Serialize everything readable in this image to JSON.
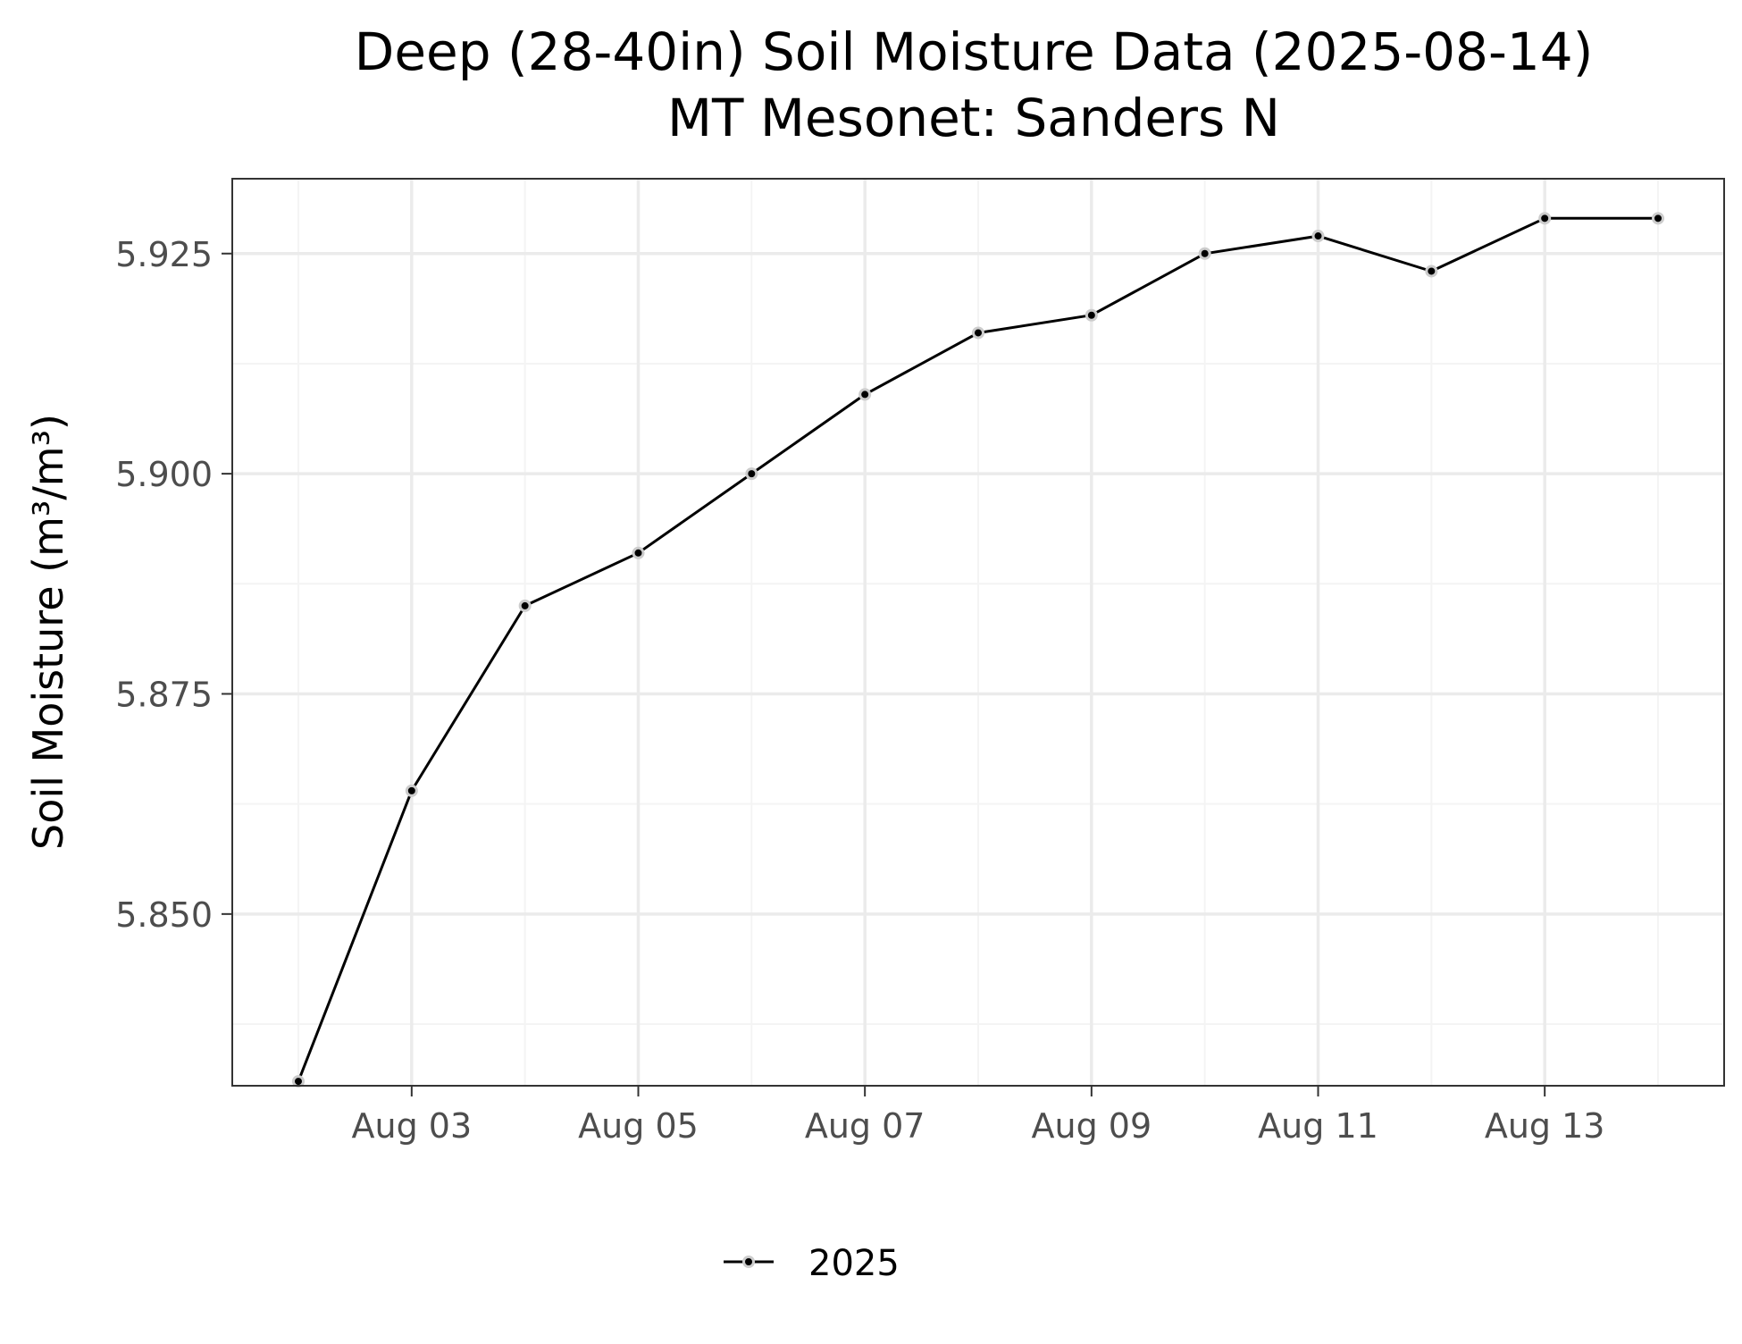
{
  "chart_data": {
    "type": "line",
    "title": "Deep (28-40in) Soil Moisture Data (2025-08-14)",
    "subtitle": "MT Mesonet: Sanders N",
    "xlabel": "",
    "ylabel": "Soil Moisture (m³/m³)",
    "x_tick_labels": [
      "Aug 03",
      "Aug 05",
      "Aug 07",
      "Aug 09",
      "Aug 11",
      "Aug 13"
    ],
    "x_tick_dates": [
      "2025-08-03",
      "2025-08-05",
      "2025-08-07",
      "2025-08-09",
      "2025-08-11",
      "2025-08-13"
    ],
    "xlim": [
      "2025-08-01T10:00",
      "2025-08-14T14:00"
    ],
    "y_ticks": [
      5.85,
      5.875,
      5.9,
      5.925
    ],
    "y_tick_labels": [
      "5.850",
      "5.875",
      "5.900",
      "5.925"
    ],
    "ylim": [
      5.8305,
      5.9335
    ],
    "grid": true,
    "legend_position": "bottom",
    "series": [
      {
        "name": "2025",
        "color": "#000000",
        "x": [
          "2025-08-02",
          "2025-08-03",
          "2025-08-04",
          "2025-08-05",
          "2025-08-06",
          "2025-08-07",
          "2025-08-08",
          "2025-08-09",
          "2025-08-10",
          "2025-08-11",
          "2025-08-12",
          "2025-08-13",
          "2025-08-14"
        ],
        "values": [
          5.831,
          5.864,
          5.885,
          5.891,
          5.9,
          5.909,
          5.916,
          5.918,
          5.925,
          5.927,
          5.923,
          5.929,
          5.929
        ]
      }
    ],
    "colors": {
      "line": "#000000",
      "point_fill": "#000000",
      "point_outline": "#cccccc",
      "grid_major": "#ebebeb",
      "grid_minor": "#f4f4f4",
      "panel_border": "#333333",
      "tick_label": "#4d4d4d"
    }
  }
}
